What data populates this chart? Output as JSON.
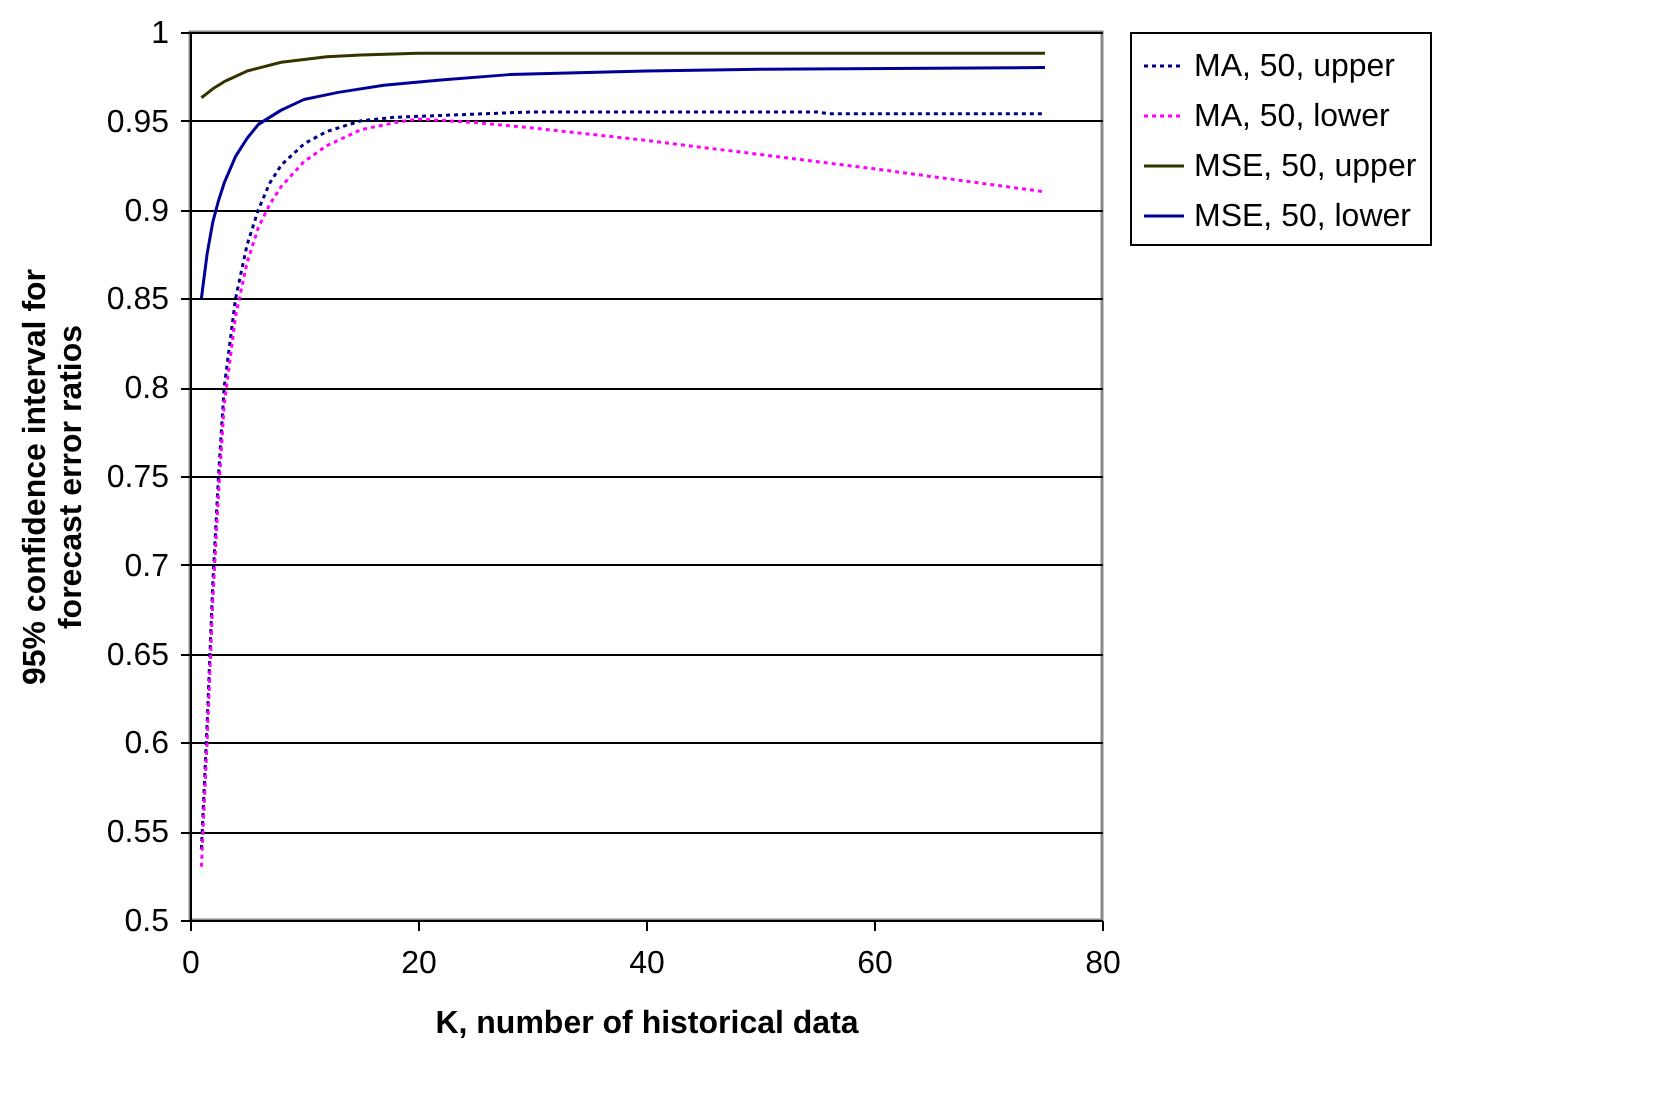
{
  "chart_data": {
    "type": "line",
    "xlabel": "K, number of historical data",
    "ylabel": "95% confidence interval for forecast error ratios",
    "xlim": [
      0,
      80
    ],
    "xticks": [
      0,
      20,
      40,
      60,
      80
    ],
    "ylim": [
      0.5,
      1
    ],
    "yticks": [
      0.5,
      0.55,
      0.6,
      0.65,
      0.7,
      0.75,
      0.8,
      0.85,
      0.9,
      0.95,
      1
    ],
    "grid": "y",
    "legend": "right",
    "series": [
      {
        "name": "MA, 50, upper",
        "color": "#000080",
        "line_style": "dotted",
        "x": [
          1,
          1.5,
          2,
          2.5,
          3,
          4,
          5,
          6,
          7,
          8,
          10,
          12,
          15,
          18,
          22,
          30,
          40,
          55,
          56,
          75
        ],
        "values": [
          0.54,
          0.61,
          0.69,
          0.75,
          0.8,
          0.85,
          0.88,
          0.9,
          0.915,
          0.925,
          0.937,
          0.944,
          0.95,
          0.952,
          0.953,
          0.955,
          0.955,
          0.955,
          0.954,
          0.954
        ]
      },
      {
        "name": "MA, 50, lower",
        "color": "#ff00ff",
        "line_style": "dotted",
        "x": [
          1,
          1.5,
          2,
          2.5,
          3,
          4,
          5,
          6,
          7,
          8,
          10,
          12,
          15,
          18,
          20,
          25,
          30,
          40,
          50,
          60,
          75
        ],
        "values": [
          0.53,
          0.6,
          0.68,
          0.74,
          0.79,
          0.84,
          0.87,
          0.89,
          0.903,
          0.913,
          0.927,
          0.936,
          0.945,
          0.949,
          0.951,
          0.949,
          0.946,
          0.939,
          0.931,
          0.923,
          0.91
        ]
      },
      {
        "name": "MSE, 50, upper",
        "color": "#333300",
        "line_style": "solid",
        "x": [
          1,
          2,
          3,
          5,
          8,
          12,
          15,
          20,
          30,
          50,
          75
        ],
        "values": [
          0.963,
          0.968,
          0.972,
          0.978,
          0.983,
          0.986,
          0.987,
          0.988,
          0.988,
          0.988,
          0.988
        ]
      },
      {
        "name": "MSE, 50, lower",
        "color": "#000099",
        "line_style": "solid",
        "x": [
          1,
          1.5,
          2,
          2.5,
          3,
          4,
          5,
          6,
          8,
          10,
          13,
          17,
          22,
          28,
          40,
          50,
          75
        ],
        "values": [
          0.85,
          0.875,
          0.893,
          0.905,
          0.915,
          0.93,
          0.94,
          0.948,
          0.956,
          0.962,
          0.966,
          0.97,
          0.973,
          0.976,
          0.978,
          0.979,
          0.98
        ]
      }
    ]
  }
}
